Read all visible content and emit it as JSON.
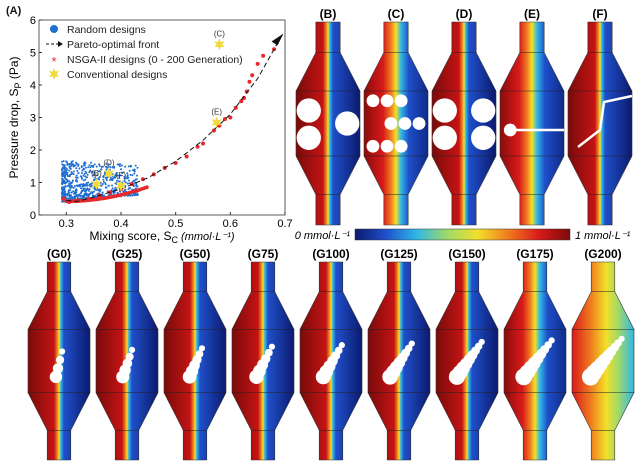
{
  "panel_labels": {
    "A": "(A)",
    "top": [
      "(B)",
      "(C)",
      "(D)",
      "(E)",
      "(F)"
    ],
    "bottom": [
      "(G0)",
      "(G25)",
      "(G50)",
      "(G75)",
      "(G100)",
      "(G125)",
      "(G150)",
      "(G175)",
      "(G200)"
    ]
  },
  "colorbar": {
    "min_label": "0 mmol·L⁻¹",
    "max_label": "1 mmol·L⁻¹",
    "colors": [
      "#0b1a6e",
      "#1f4fc9",
      "#2fb7e8",
      "#9fd96a",
      "#f2e02a",
      "#f07a1e",
      "#d81a1a",
      "#7a0a0a"
    ]
  },
  "chart_data": {
    "type": "scatter",
    "xlabel": "Mixing score, S",
    "xlabel_sub": "C",
    "xlabel_unit": "(mmol·L⁻¹)",
    "ylabel": "Pressure drop, S",
    "ylabel_sub": "P",
    "ylabel_unit": "(Pa)",
    "xlim": [
      0.25,
      0.7
    ],
    "ylim": [
      0,
      6
    ],
    "xticks": [
      "0.3",
      "0.4",
      "0.5",
      "0.6",
      "0.7"
    ],
    "yticks": [
      "0",
      "1",
      "2",
      "3",
      "4",
      "5",
      "6"
    ],
    "legend_position": "top-left",
    "legend": [
      "Random designs",
      "Pareto-optimal front",
      "NSGA-II designs (0 - 200 Generation)",
      "Conventional designs"
    ],
    "series": [
      {
        "name": "Random designs",
        "color": "#1f6fd1",
        "x_range": [
          0.29,
          0.45
        ],
        "y_range": [
          0.4,
          1.5
        ]
      },
      {
        "name": "Pareto-optimal front",
        "color": "#111111",
        "x": [
          0.3,
          0.32,
          0.35,
          0.4,
          0.45,
          0.5,
          0.55,
          0.6,
          0.65,
          0.69
        ],
        "y": [
          0.45,
          0.42,
          0.55,
          0.8,
          1.15,
          1.65,
          2.3,
          3.1,
          4.2,
          5.4
        ]
      },
      {
        "name": "NSGA-II designs (0 - 200 Generation)",
        "color": "#e8282a",
        "x": [
          0.295,
          0.305,
          0.32,
          0.34,
          0.36,
          0.38,
          0.4,
          0.42,
          0.44,
          0.46,
          0.48,
          0.5,
          0.52,
          0.54,
          0.55,
          0.57,
          0.58,
          0.59,
          0.6,
          0.61,
          0.62,
          0.625,
          0.63,
          0.635,
          0.64,
          0.65,
          0.66,
          0.68
        ],
        "y": [
          0.5,
          0.4,
          0.45,
          0.5,
          0.6,
          0.7,
          0.8,
          0.95,
          1.1,
          1.25,
          1.45,
          1.6,
          1.8,
          2.1,
          2.2,
          2.6,
          2.75,
          2.95,
          3.0,
          3.3,
          3.5,
          3.6,
          3.8,
          4.1,
          4.3,
          4.65,
          4.9,
          5.1
        ]
      },
      {
        "name": "Conventional designs",
        "color": "#f2d93a",
        "points": [
          {
            "label": "(B)",
            "x": 0.355,
            "y": 0.95
          },
          {
            "label": "(C)",
            "x": 0.58,
            "y": 5.25
          },
          {
            "label": "(D)",
            "x": 0.378,
            "y": 1.28
          },
          {
            "label": "(E)",
            "x": 0.575,
            "y": 2.85
          },
          {
            "label": "(F)",
            "x": 0.4,
            "y": 0.9
          }
        ]
      }
    ]
  }
}
